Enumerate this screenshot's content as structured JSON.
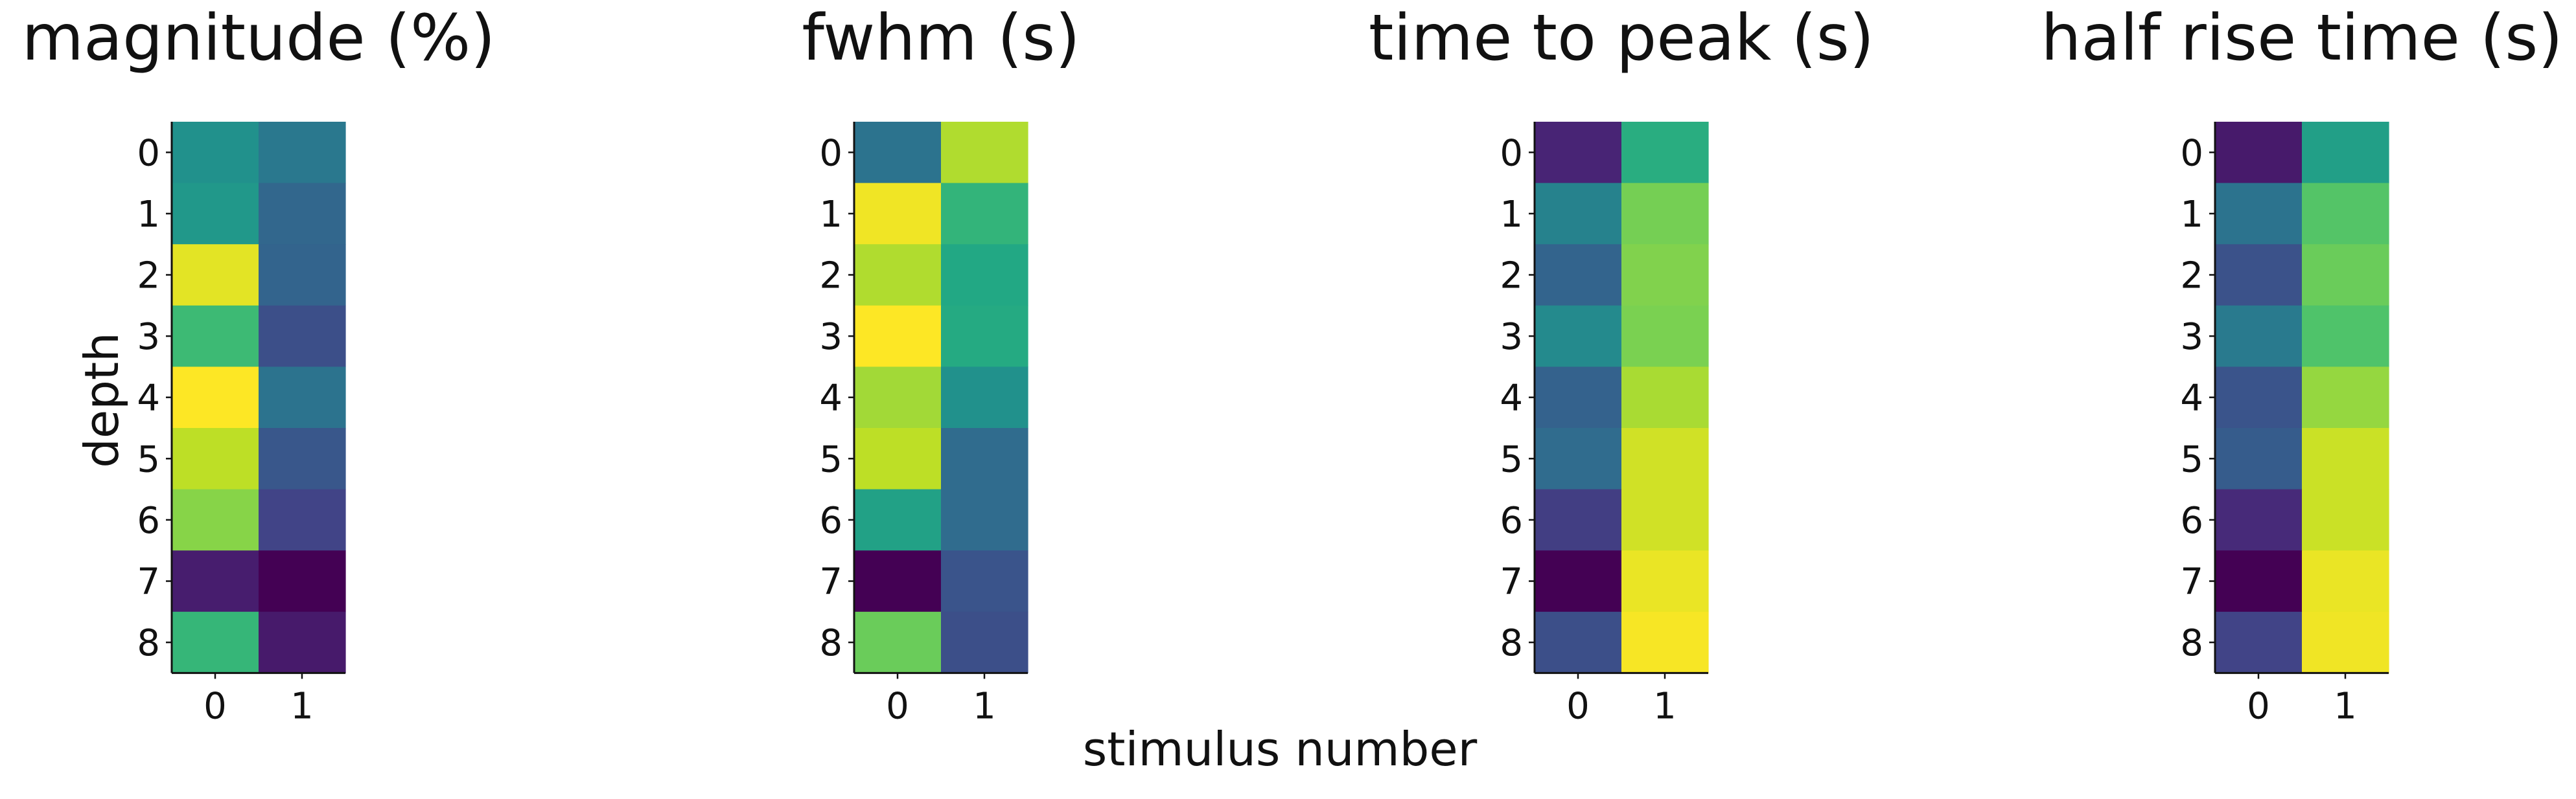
{
  "figure": {
    "shared_xlabel": "stimulus number",
    "shared_ylabel": "depth",
    "colormap": "viridis"
  },
  "chart_data": [
    {
      "type": "heatmap",
      "title": "magnitude (%)",
      "x_categories": [
        "0",
        "1"
      ],
      "y_categories": [
        "0",
        "1",
        "2",
        "3",
        "4",
        "5",
        "6",
        "7",
        "8"
      ],
      "values": [
        [
          0.5,
          0.4
        ],
        [
          0.53,
          0.33
        ],
        [
          0.96,
          0.32
        ],
        [
          0.68,
          0.24
        ],
        [
          1.0,
          0.38
        ],
        [
          0.9,
          0.27
        ],
        [
          0.82,
          0.2
        ],
        [
          0.08,
          0.0
        ],
        [
          0.66,
          0.07
        ]
      ],
      "vmin": 0,
      "vmax": 1
    },
    {
      "type": "heatmap",
      "title": "fwhm (s)",
      "x_categories": [
        "0",
        "1"
      ],
      "y_categories": [
        "0",
        "1",
        "2",
        "3",
        "4",
        "5",
        "6",
        "7",
        "8"
      ],
      "values": [
        [
          0.38,
          0.88
        ],
        [
          0.98,
          0.65
        ],
        [
          0.88,
          0.6
        ],
        [
          1.0,
          0.61
        ],
        [
          0.86,
          0.5
        ],
        [
          0.9,
          0.35
        ],
        [
          0.57,
          0.35
        ],
        [
          0.0,
          0.26
        ],
        [
          0.77,
          0.24
        ]
      ],
      "vmin": 0,
      "vmax": 1
    },
    {
      "type": "heatmap",
      "title": "time to peak (s)",
      "x_categories": [
        "0",
        "1"
      ],
      "y_categories": [
        "0",
        "1",
        "2",
        "3",
        "4",
        "5",
        "6",
        "7",
        "8"
      ],
      "values": [
        [
          0.1,
          0.62
        ],
        [
          0.44,
          0.79
        ],
        [
          0.32,
          0.81
        ],
        [
          0.47,
          0.8
        ],
        [
          0.31,
          0.87
        ],
        [
          0.35,
          0.93
        ],
        [
          0.18,
          0.93
        ],
        [
          0.0,
          0.97
        ],
        [
          0.24,
          0.99
        ]
      ],
      "vmin": 0,
      "vmax": 1
    },
    {
      "type": "heatmap",
      "title": "half rise time (s)",
      "x_categories": [
        "0",
        "1"
      ],
      "y_categories": [
        "0",
        "1",
        "2",
        "3",
        "4",
        "5",
        "6",
        "7",
        "8"
      ],
      "values": [
        [
          0.07,
          0.56
        ],
        [
          0.38,
          0.73
        ],
        [
          0.25,
          0.77
        ],
        [
          0.41,
          0.72
        ],
        [
          0.26,
          0.84
        ],
        [
          0.29,
          0.92
        ],
        [
          0.12,
          0.92
        ],
        [
          0.0,
          0.97
        ],
        [
          0.2,
          0.98
        ]
      ],
      "vmin": 0,
      "vmax": 1
    }
  ]
}
